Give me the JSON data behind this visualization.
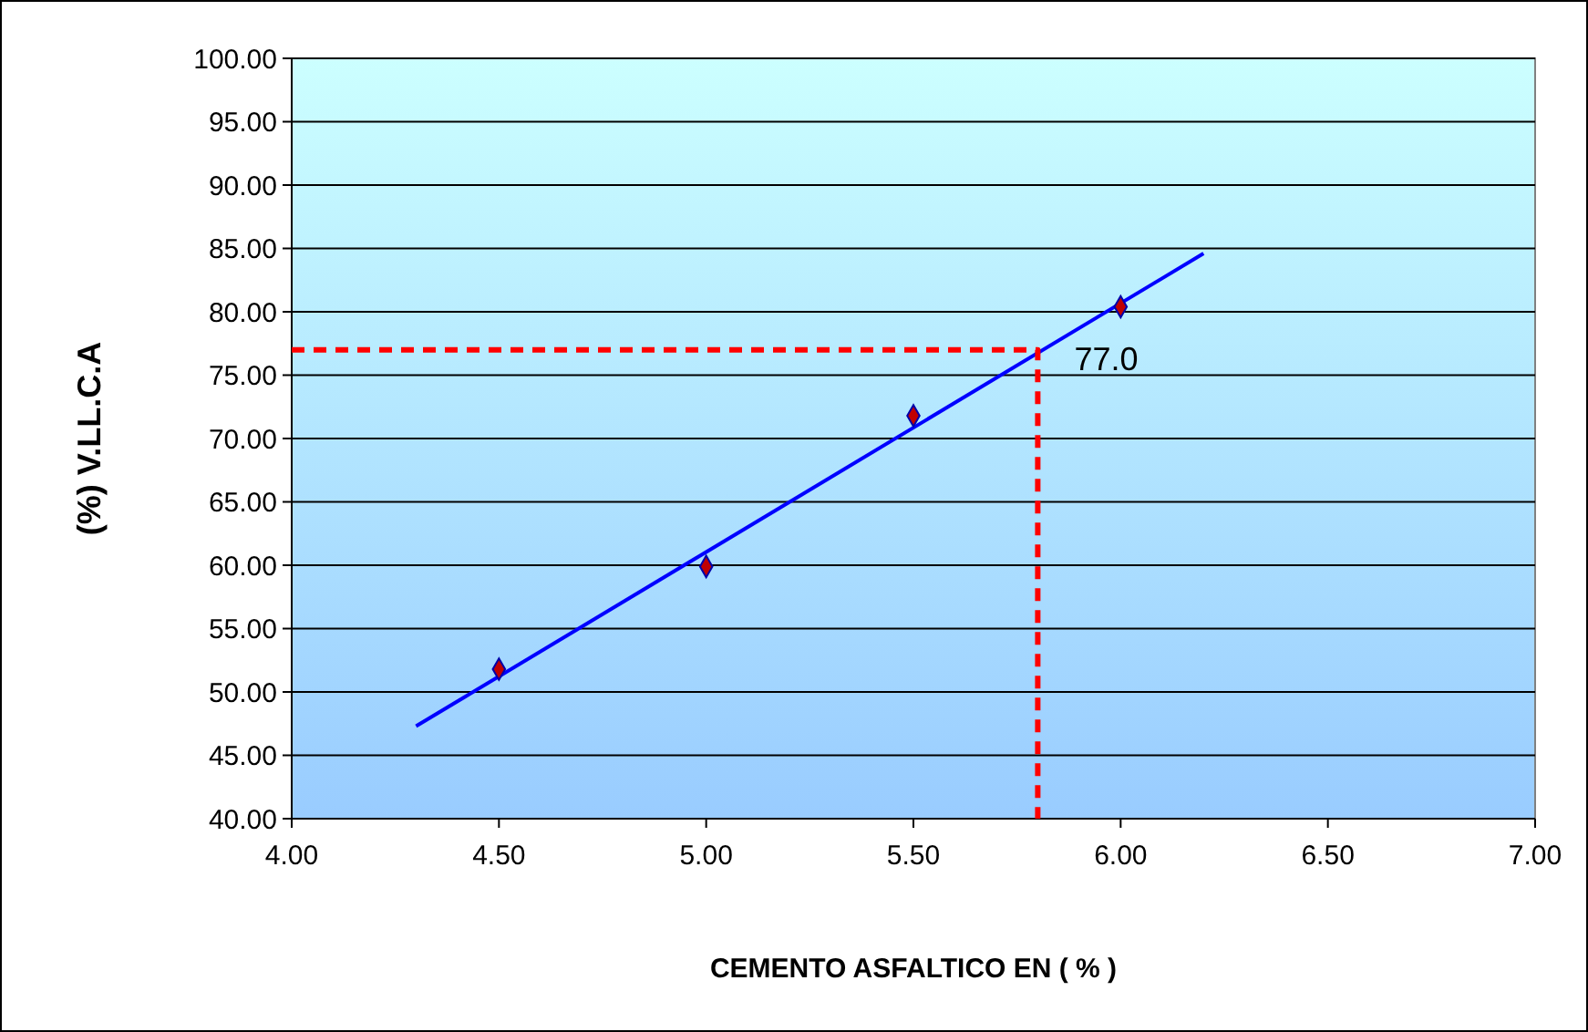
{
  "chart_data": {
    "type": "scatter",
    "xlabel": "CEMENTO ASFALTICO EN  ( % )",
    "ylabel": "(%) V.LL.C.A",
    "xlim": [
      4,
      7
    ],
    "xticks": [
      {
        "value": 4,
        "label": "4.00"
      },
      {
        "value": 4.5,
        "label": "4.50"
      },
      {
        "value": 5,
        "label": "5.00"
      },
      {
        "value": 5.5,
        "label": "5.50"
      },
      {
        "value": 6,
        "label": "6.00"
      },
      {
        "value": 6.5,
        "label": "6.50"
      },
      {
        "value": 7,
        "label": "7.00"
      }
    ],
    "ylim": [
      40,
      100
    ],
    "yticks": [
      {
        "value": 40,
        "label": "40.00"
      },
      {
        "value": 45,
        "label": "45.00"
      },
      {
        "value": 50,
        "label": "50.00"
      },
      {
        "value": 55,
        "label": "55.00"
      },
      {
        "value": 60,
        "label": "60.00"
      },
      {
        "value": 65,
        "label": "65.00"
      },
      {
        "value": 70,
        "label": "70.00"
      },
      {
        "value": 75,
        "label": "75.00"
      },
      {
        "value": 80,
        "label": "80.00"
      },
      {
        "value": 85,
        "label": "85.00"
      },
      {
        "value": 90,
        "label": "90.00"
      },
      {
        "value": 95,
        "label": "95.00"
      },
      {
        "value": 100,
        "label": "100.00"
      }
    ],
    "grid": "y",
    "series": [
      {
        "type": "line",
        "color": "#0000ff",
        "x": [
          4.3,
          6.2
        ],
        "values": [
          47.3,
          84.6
        ],
        "marker": "none",
        "line_style": "solid"
      },
      {
        "type": "line",
        "color": "#ff0000",
        "x": [
          4,
          5.8,
          5.8
        ],
        "values": [
          77,
          77,
          40
        ],
        "marker": "none",
        "line_style": "dashed"
      },
      {
        "color": "#c00000",
        "x": [
          4.5,
          5,
          5.5,
          6
        ],
        "values": [
          51.8,
          59.9,
          71.8,
          80.4
        ],
        "marker": "diamond"
      }
    ],
    "annotations": [
      {
        "text": "77.0",
        "x": 5.8,
        "y": 77
      }
    ]
  }
}
